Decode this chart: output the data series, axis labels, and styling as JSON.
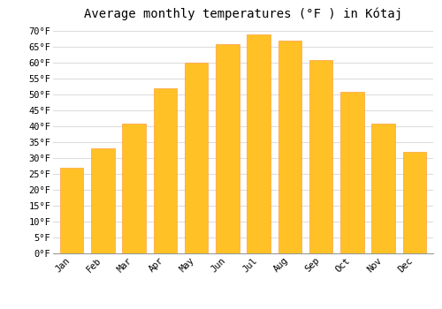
{
  "title": "Average monthly temperatures (°F ) in Kótaj",
  "months": [
    "Jan",
    "Feb",
    "Mar",
    "Apr",
    "May",
    "Jun",
    "Jul",
    "Aug",
    "Sep",
    "Oct",
    "Nov",
    "Dec"
  ],
  "values": [
    27,
    33,
    41,
    52,
    60,
    66,
    69,
    67,
    61,
    51,
    41,
    32
  ],
  "bar_color": "#FFC125",
  "bar_edge_color": "#FFA040",
  "background_color": "#FFFFFF",
  "grid_color": "#DDDDDD",
  "ylim": [
    0,
    72
  ],
  "yticks": [
    0,
    5,
    10,
    15,
    20,
    25,
    30,
    35,
    40,
    45,
    50,
    55,
    60,
    65,
    70
  ],
  "ylabel_suffix": "°F",
  "title_fontsize": 10,
  "tick_fontsize": 7.5,
  "font_family": "monospace",
  "bar_width": 0.75
}
